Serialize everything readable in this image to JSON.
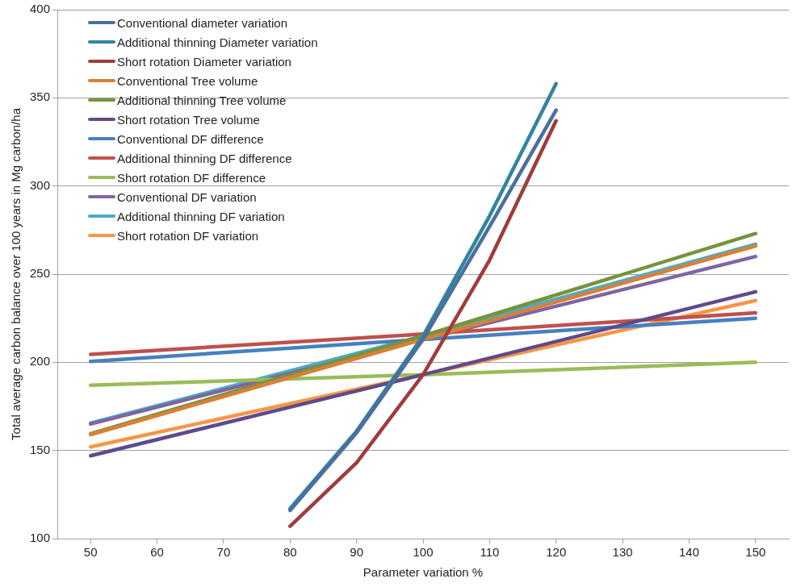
{
  "chart_data": {
    "type": "line",
    "xlabel": "Parameter variation %",
    "ylabel": "Total average carbon balance over 100 years in Mg carbon/ha",
    "xlim": [
      45,
      155
    ],
    "xticks": [
      50,
      60,
      70,
      80,
      90,
      100,
      110,
      120,
      130,
      140,
      150
    ],
    "ylim": [
      100,
      400
    ],
    "yticks": [
      100,
      150,
      200,
      250,
      300,
      350,
      400
    ],
    "grid": "y",
    "legend": "top left",
    "marker": "none",
    "line_style": "solid",
    "series": [
      {
        "name": "Conventional diameter variation",
        "color": "#4a6fa0",
        "x": [
          80,
          90,
          100,
          110,
          120
        ],
        "values": [
          116,
          160,
          213,
          277,
          343
        ]
      },
      {
        "name": "Additional thinning Diameter variation",
        "color": "#31859c",
        "x": [
          80,
          90,
          100,
          110,
          120
        ],
        "values": [
          117,
          161,
          215,
          283,
          358
        ]
      },
      {
        "name": "Short rotation Diameter variation",
        "color": "#a03c3c",
        "x": [
          80,
          90,
          100,
          110,
          120
        ],
        "values": [
          107,
          143,
          193,
          258,
          337
        ]
      },
      {
        "name": "Conventional Tree volume",
        "color": "#d98036",
        "x": [
          50,
          100,
          150
        ],
        "values": [
          159,
          213,
          266
        ]
      },
      {
        "name": "Additional thinning Tree volume",
        "color": "#77933c",
        "x": [
          50,
          100,
          150
        ],
        "values": [
          159.5,
          215,
          273
        ]
      },
      {
        "name": "Short rotation Tree volume",
        "color": "#5f4b8b",
        "x": [
          50,
          100,
          150
        ],
        "values": [
          147,
          193,
          240
        ]
      },
      {
        "name": "Conventional DF difference",
        "color": "#4680c0",
        "x": [
          50,
          100,
          150
        ],
        "values": [
          200.5,
          213,
          225
        ]
      },
      {
        "name": "Additional thinning DF difference",
        "color": "#c0504d",
        "x": [
          50,
          100,
          150
        ],
        "values": [
          204.5,
          216,
          228
        ]
      },
      {
        "name": "Short rotation DF difference",
        "color": "#9bbb59",
        "x": [
          50,
          100,
          150
        ],
        "values": [
          187,
          193,
          200
        ]
      },
      {
        "name": "Conventional DF variation",
        "color": "#8064a2",
        "x": [
          50,
          100,
          150
        ],
        "values": [
          165,
          213,
          260
        ]
      },
      {
        "name": "Additional thinning DF variation",
        "color": "#4bacc6",
        "x": [
          50,
          100,
          150
        ],
        "values": [
          165.5,
          215,
          267
        ]
      },
      {
        "name": "Short rotation DF variation",
        "color": "#f79646",
        "x": [
          50,
          100,
          150
        ],
        "values": [
          152,
          193,
          235
        ]
      }
    ]
  }
}
